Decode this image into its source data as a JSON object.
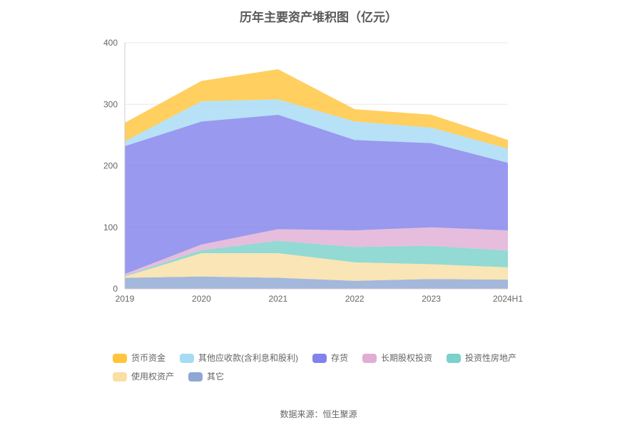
{
  "chart_data": {
    "type": "area",
    "stacked": true,
    "title": "历年主要资产堆积图（亿元）",
    "categories": [
      "2019",
      "2020",
      "2021",
      "2022",
      "2023",
      "2024H1"
    ],
    "ylim": [
      0,
      400
    ],
    "yticks": [
      0,
      100,
      200,
      300,
      400
    ],
    "grid": true,
    "legend_position": "bottom",
    "series_bottom_to_top": [
      {
        "name": "其它",
        "color": "#8FA8D3",
        "values": [
          18,
          20,
          18,
          13,
          16,
          15
        ]
      },
      {
        "name": "使用权资产",
        "color": "#F8DFA5",
        "values": [
          2,
          38,
          40,
          30,
          24,
          20
        ]
      },
      {
        "name": "投资性房地产",
        "color": "#7BD1CB",
        "values": [
          1,
          5,
          20,
          25,
          30,
          27
        ]
      },
      {
        "name": "长期股权投资",
        "color": "#E0AED4",
        "values": [
          3,
          9,
          19,
          27,
          30,
          33
        ]
      },
      {
        "name": "存货",
        "color": "#8282EC",
        "values": [
          208,
          200,
          186,
          147,
          137,
          110
        ]
      },
      {
        "name": "其他应收款(含利息和股利)",
        "color": "#A7DBF4",
        "values": [
          8,
          33,
          25,
          30,
          25,
          23
        ]
      },
      {
        "name": "货币资金",
        "color": "#FFC53D",
        "values": [
          30,
          33,
          49,
          20,
          21,
          14
        ]
      }
    ],
    "legend_order": [
      "货币资金",
      "其他应收款(含利息和股利)",
      "存货",
      "长期股权投资",
      "投资性房地产",
      "使用权资产",
      "其它"
    ],
    "source": "数据来源：恒生聚源",
    "colors": {
      "grid_line": "#E8E8E8",
      "axis_line": "#CCCCCC",
      "tick_label": "#666666",
      "title": "#595959"
    }
  }
}
